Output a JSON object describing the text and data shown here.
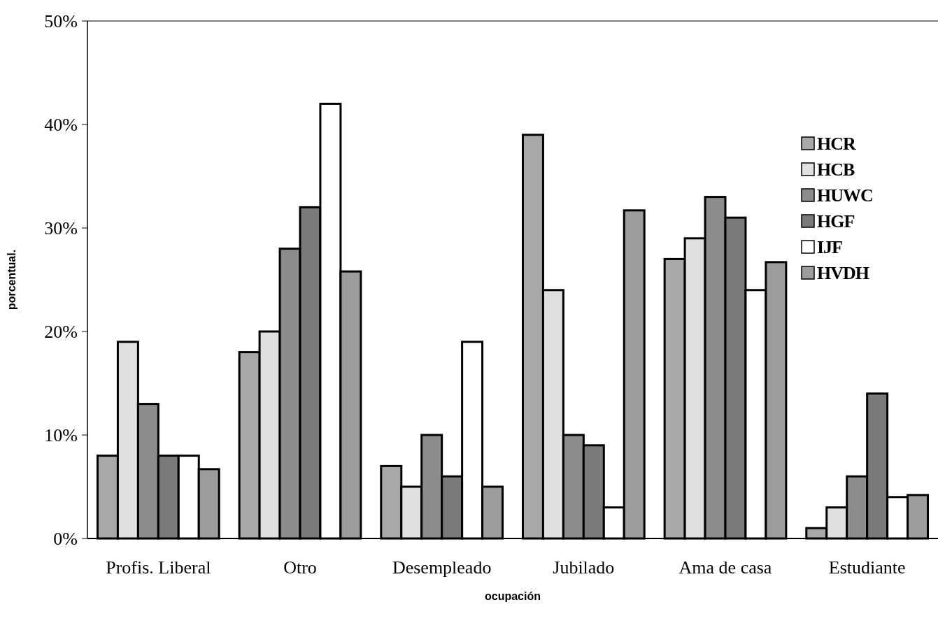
{
  "chart_data": {
    "type": "bar",
    "xlabel": "ocupación",
    "ylabel": "porcentual.",
    "categories": [
      "Profis. Liberal",
      "Otro",
      "Desempleado",
      "Jubilado",
      "Ama de casa",
      "Estudiante"
    ],
    "series": [
      {
        "name": "HCR",
        "color": "#a8a8a8",
        "values": [
          8,
          18,
          7,
          39,
          27,
          1
        ]
      },
      {
        "name": "HCB",
        "color": "#e0e0e0",
        "values": [
          19,
          20,
          5,
          24,
          29,
          3
        ]
      },
      {
        "name": "HUWC",
        "color": "#8c8c8c",
        "values": [
          13,
          28,
          10,
          10,
          33,
          6
        ]
      },
      {
        "name": "HGF",
        "color": "#7a7a7a",
        "values": [
          8,
          32,
          6,
          9,
          31,
          14
        ]
      },
      {
        "name": "IJF",
        "color": "#ffffff",
        "values": [
          8,
          42,
          19,
          3,
          24,
          4
        ]
      },
      {
        "name": "HVDH",
        "color": "#9c9c9c",
        "values": [
          6.7,
          25.8,
          5,
          31.7,
          26.7,
          4.2
        ]
      }
    ],
    "ylim": [
      0,
      50
    ],
    "yticks": [
      {
        "value": 0,
        "label": "0%"
      },
      {
        "value": 10,
        "label": "10%"
      },
      {
        "value": 20,
        "label": "20%"
      },
      {
        "value": 30,
        "label": "30%"
      },
      {
        "value": 40,
        "label": "40%"
      },
      {
        "value": 50,
        "label": "50%"
      }
    ],
    "grid": false,
    "legend": "top right"
  }
}
